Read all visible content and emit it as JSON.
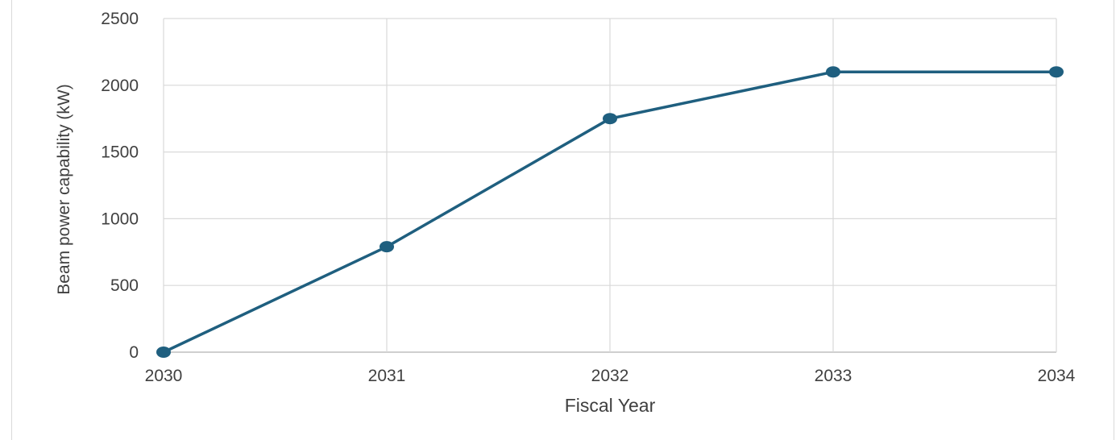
{
  "chart_data": {
    "type": "line",
    "title": "",
    "xlabel": "Fiscal Year",
    "ylabel": "Beam power capability (kW)",
    "x": [
      "2030",
      "2031",
      "2032",
      "2033",
      "2034"
    ],
    "ylim": [
      0,
      2500
    ],
    "yticks": [
      "0",
      "500",
      "1000",
      "1500",
      "2000",
      "2500"
    ],
    "grid": true,
    "legend": "none",
    "series": [
      {
        "values": [
          0,
          790,
          1750,
          2100,
          2100
        ],
        "color": "#1f5f7f"
      }
    ]
  }
}
